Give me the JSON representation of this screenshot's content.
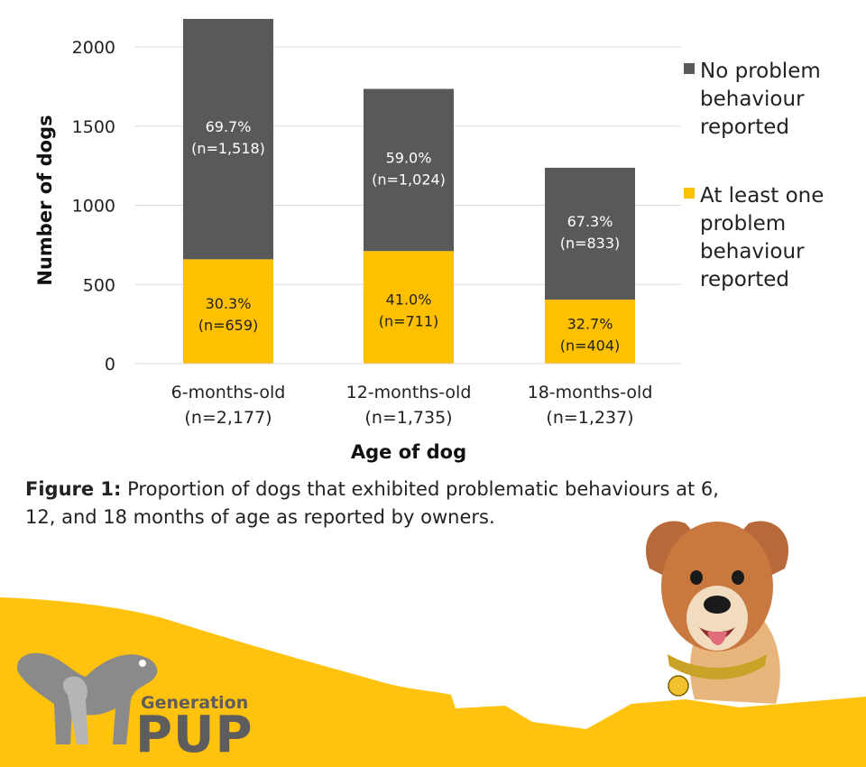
{
  "colors": {
    "no_problem": "#595959",
    "problem": "#FFC000",
    "grid": "#d9d9d9",
    "brand_yellow": "#FFC20E",
    "brand_grey": "#5d5d5d"
  },
  "chart_data": {
    "type": "bar",
    "stacked": true,
    "categories": [
      "6-months-old",
      "12-months-old",
      "18-months-old"
    ],
    "category_counts": [
      "(n=2,177)",
      "(n=1,735)",
      "(n=1,237)"
    ],
    "series": [
      {
        "name": "At least one problem behaviour reported",
        "values": [
          659,
          711,
          404
        ],
        "labels": [
          "30.3%",
          "41.0%",
          "32.7%"
        ],
        "counts": [
          "(n=659)",
          "(n=711)",
          "(n=404)"
        ]
      },
      {
        "name": "No problem behaviour reported",
        "values": [
          1518,
          1024,
          833
        ],
        "labels": [
          "69.7%",
          "59.0%",
          "67.3%"
        ],
        "counts": [
          "(n=1,518)",
          "(n=1,024)",
          "(n=833)"
        ]
      }
    ],
    "xlabel": "Age of dog",
    "ylabel": "Number of dogs",
    "ylim": [
      0,
      2200
    ],
    "yticks": [
      0,
      500,
      1000,
      1500,
      2000
    ],
    "grid": true,
    "legend_position": "right"
  },
  "legend": [
    {
      "lines": [
        "No problem",
        "behaviour",
        "reported"
      ]
    },
    {
      "lines": [
        "At least one",
        "problem",
        "behaviour",
        "reported"
      ]
    }
  ],
  "caption": {
    "bold": "Figure 1:",
    "lines": [
      " Proportion of dogs that exhibited problematic behaviours at 6,",
      "12, and 18 months of age as reported by owners."
    ]
  },
  "brand": {
    "line1": "Generation",
    "line2": "PUP"
  }
}
